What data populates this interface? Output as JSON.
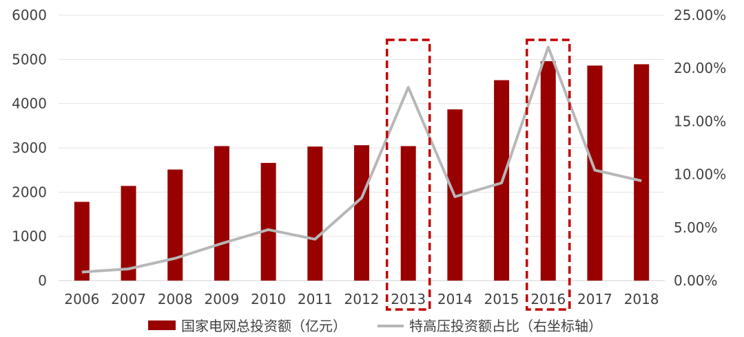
{
  "chart_data": {
    "type": "bar",
    "categories": [
      "2006",
      "2007",
      "2008",
      "2009",
      "2010",
      "2011",
      "2012",
      "2013",
      "2014",
      "2015",
      "2016",
      "2017",
      "2018"
    ],
    "series": [
      {
        "name": "国家电网总投资额（亿元）",
        "type": "bar",
        "axis": "left",
        "color": "#990000",
        "values": [
          1780,
          2140,
          2510,
          3040,
          2660,
          3030,
          3060,
          3040,
          3870,
          4530,
          4960,
          4860,
          4890
        ]
      },
      {
        "name": "特高压投资额占比（右坐标轴）",
        "type": "line",
        "axis": "right",
        "color": "#b7b7b7",
        "values": [
          0.8,
          1.1,
          2.1,
          3.5,
          4.8,
          3.9,
          7.8,
          18.2,
          7.9,
          9.2,
          22.0,
          10.4,
          9.4
        ]
      }
    ],
    "y_left": {
      "min": 0,
      "max": 6000,
      "ticks": [
        "0",
        "1000",
        "2000",
        "3000",
        "4000",
        "5000",
        "6000"
      ]
    },
    "y_right": {
      "min": 0,
      "max": 25,
      "ticks": [
        "0.00%",
        "5.00%",
        "10.00%",
        "15.00%",
        "20.00%",
        "25.00%"
      ]
    },
    "highlighted_categories": [
      "2013",
      "2016"
    ],
    "highlight_color": "#c00000",
    "grid": true,
    "legend_position": "bottom",
    "title": "",
    "xlabel": "",
    "ylabel": ""
  }
}
